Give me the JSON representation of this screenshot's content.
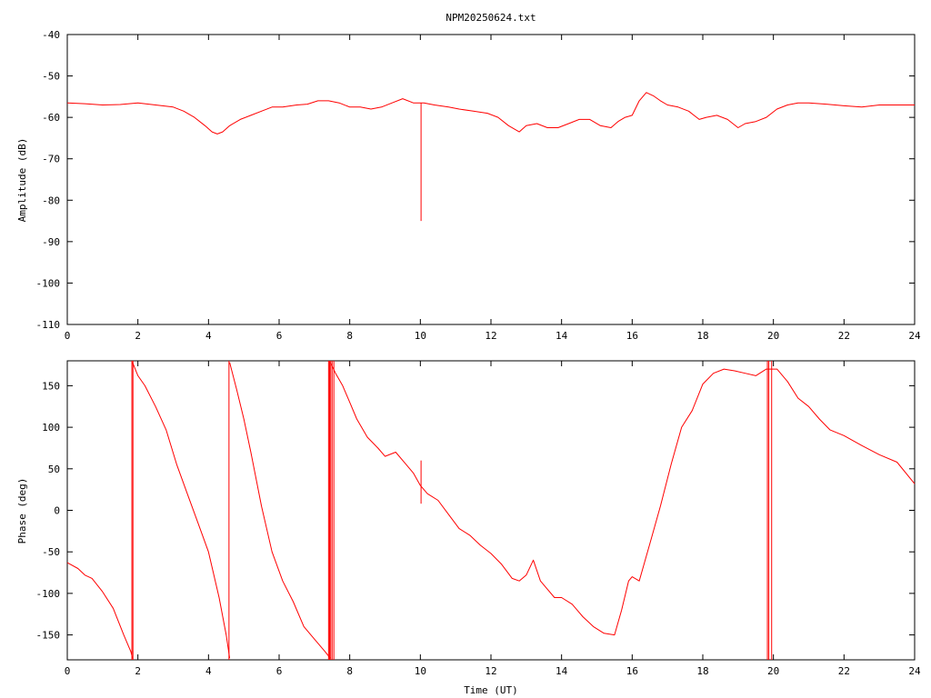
{
  "title": "NPM20250624.txt",
  "colors": {
    "trace": "#ff0000",
    "axes": "#000000",
    "background": "#ffffff"
  },
  "chart_data": [
    {
      "type": "line",
      "panel": "top",
      "title": "NPM20250624.txt",
      "xlabel": "",
      "ylabel": "Amplitude (dB)",
      "xlim": [
        0,
        24
      ],
      "ylim": [
        -110,
        -40
      ],
      "xticks": [
        0,
        2,
        4,
        6,
        8,
        10,
        12,
        14,
        16,
        18,
        20,
        22,
        24
      ],
      "yticks": [
        -110,
        -100,
        -90,
        -80,
        -70,
        -60,
        -50,
        -40
      ],
      "grid": false,
      "series": [
        {
          "x": [
            0,
            0.5,
            1,
            1.5,
            2,
            2.5,
            3,
            3.3,
            3.6,
            3.9,
            4.1,
            4.25,
            4.4,
            4.6,
            4.9,
            5.2,
            5.5,
            5.8,
            6.1,
            6.5,
            6.8,
            7.1,
            7.4,
            7.7,
            8,
            8.3,
            8.6,
            8.9,
            9.2,
            9.5,
            9.8,
            10.1,
            10.4,
            10.8,
            11.1,
            11.5,
            11.9,
            12.2,
            12.5,
            12.8,
            13,
            13.3,
            13.6,
            13.9,
            14.2,
            14.5,
            14.8,
            15.1,
            15.4,
            15.6,
            15.8,
            16,
            16.2,
            16.4,
            16.6,
            16.8,
            17,
            17.3,
            17.6,
            17.9,
            18.1,
            18.4,
            18.7,
            19,
            19.2,
            19.5,
            19.8,
            20.1,
            20.4,
            20.7,
            21,
            21.5,
            22,
            22.5,
            23,
            23.5,
            24
          ],
          "y": [
            -56.5,
            -56.7,
            -57,
            -56.9,
            -56.5,
            -57,
            -57.5,
            -58.5,
            -60,
            -62,
            -63.5,
            -64,
            -63.5,
            -62,
            -60.5,
            -59.5,
            -58.5,
            -57.5,
            -57.5,
            -57,
            -56.8,
            -56,
            -56,
            -56.5,
            -57.5,
            -57.5,
            -58,
            -57.5,
            -56.5,
            -55.5,
            -56.5,
            -56.5,
            -57,
            -57.5,
            -58,
            -58.5,
            -59,
            -60,
            -62,
            -63.5,
            -62,
            -61.5,
            -62.5,
            -62.5,
            -61.5,
            -60.5,
            -60.5,
            -62,
            -62.5,
            -61,
            -60,
            -59.5,
            -56,
            -54,
            -54.8,
            -56,
            -57,
            -57.5,
            -58.5,
            -60.5,
            -60,
            -59.5,
            -60.5,
            -62.5,
            -61.5,
            -61,
            -60,
            -58,
            -57,
            -56.5,
            -56.5,
            -56.8,
            -57.2,
            -57.5,
            -57,
            -57,
            -57
          ]
        }
      ],
      "annotations": [
        {
          "type": "spike",
          "x": 10.02,
          "y_from": -56.5,
          "y_to": -85
        }
      ]
    },
    {
      "type": "line",
      "panel": "bottom",
      "title": "",
      "xlabel": "Time (UT)",
      "ylabel": "Phase (deg)",
      "xlim": [
        0,
        24
      ],
      "ylim": [
        -180,
        180
      ],
      "xticks": [
        0,
        2,
        4,
        6,
        8,
        10,
        12,
        14,
        16,
        18,
        20,
        22,
        24
      ],
      "yticks": [
        -150,
        -100,
        -50,
        0,
        50,
        100,
        150
      ],
      "grid": false,
      "series": [
        {
          "segments": [
            {
              "x": [
                0,
                0.3,
                0.5,
                0.7,
                1,
                1.3,
                1.6,
                1.8,
                1.85
              ],
              "y": [
                -63,
                -70,
                -78,
                -82,
                -98,
                -118,
                -150,
                -170,
                -178
              ]
            },
            {
              "x": [
                1.85,
                2,
                2.2,
                2.5,
                2.8,
                3.1,
                3.4,
                3.7,
                4,
                4.3,
                4.5,
                4.6
              ],
              "y": [
                178,
                162,
                150,
                125,
                97,
                55,
                20,
                -15,
                -50,
                -105,
                -150,
                -178
              ]
            },
            {
              "x": [
                4.6,
                4.8,
                5,
                5.2,
                5.5,
                5.8,
                6.1,
                6.4,
                6.7,
                7,
                7.3,
                7.45
              ],
              "y": [
                178,
                145,
                110,
                70,
                5,
                -50,
                -85,
                -110,
                -140,
                -155,
                -170,
                -178
              ]
            },
            {
              "x": [
                7.45,
                7.6,
                7.8,
                8,
                8.2,
                8.5,
                8.8,
                9,
                9.3,
                9.6,
                9.8,
                10,
                10.2,
                10.5,
                10.8,
                11.1,
                11.4,
                11.7,
                12,
                12.3,
                12.6,
                12.8,
                13,
                13.2,
                13.4,
                13.6,
                13.8,
                14,
                14.3,
                14.6,
                14.9,
                15.2,
                15.5,
                15.7,
                15.9,
                16,
                16.2,
                16.5,
                16.8,
                17.1,
                17.4,
                17.7,
                18,
                18.3,
                18.6,
                18.9,
                19.2,
                19.5,
                19.8,
                20.1,
                20.4,
                20.7,
                21,
                21.3,
                21.6,
                22,
                22.5,
                23,
                23.5,
                24
              ],
              "y": [
                178,
                165,
                150,
                130,
                110,
                88,
                75,
                65,
                70,
                55,
                45,
                30,
                20,
                12,
                -5,
                -22,
                -30,
                -42,
                -52,
                -65,
                -82,
                -85,
                -78,
                -60,
                -85,
                -95,
                -105,
                -105,
                -113,
                -128,
                -140,
                -148,
                -150,
                -120,
                -85,
                -80,
                -85,
                -40,
                5,
                55,
                100,
                120,
                152,
                165,
                170,
                168,
                165,
                162,
                170,
                170,
                155,
                135,
                125,
                110,
                97,
                90,
                78,
                67,
                58,
                32
              ]
            }
          ]
        }
      ],
      "annotations": [
        {
          "type": "spike",
          "x": 1.83,
          "y_from": -180,
          "y_to": 180
        },
        {
          "type": "spike",
          "x": 1.86,
          "y_from": -180,
          "y_to": 180
        },
        {
          "type": "spike",
          "x": 4.58,
          "y_from": -180,
          "y_to": 180
        },
        {
          "type": "spike",
          "x": 7.4,
          "y_from": -180,
          "y_to": 180
        },
        {
          "type": "spike",
          "x": 7.43,
          "y_from": -180,
          "y_to": 180
        },
        {
          "type": "spike",
          "x": 7.46,
          "y_from": -180,
          "y_to": 180
        },
        {
          "type": "spike",
          "x": 7.5,
          "y_from": -180,
          "y_to": 180
        },
        {
          "type": "spike",
          "x": 7.55,
          "y_from": -180,
          "y_to": 180
        },
        {
          "type": "spike",
          "x": 10.02,
          "y_from": 8,
          "y_to": 60
        },
        {
          "type": "spike",
          "x": 19.83,
          "y_from": -180,
          "y_to": 180
        },
        {
          "type": "spike",
          "x": 19.87,
          "y_from": -180,
          "y_to": 180
        },
        {
          "type": "spike",
          "x": 19.95,
          "y_from": -180,
          "y_to": 180
        }
      ]
    }
  ]
}
